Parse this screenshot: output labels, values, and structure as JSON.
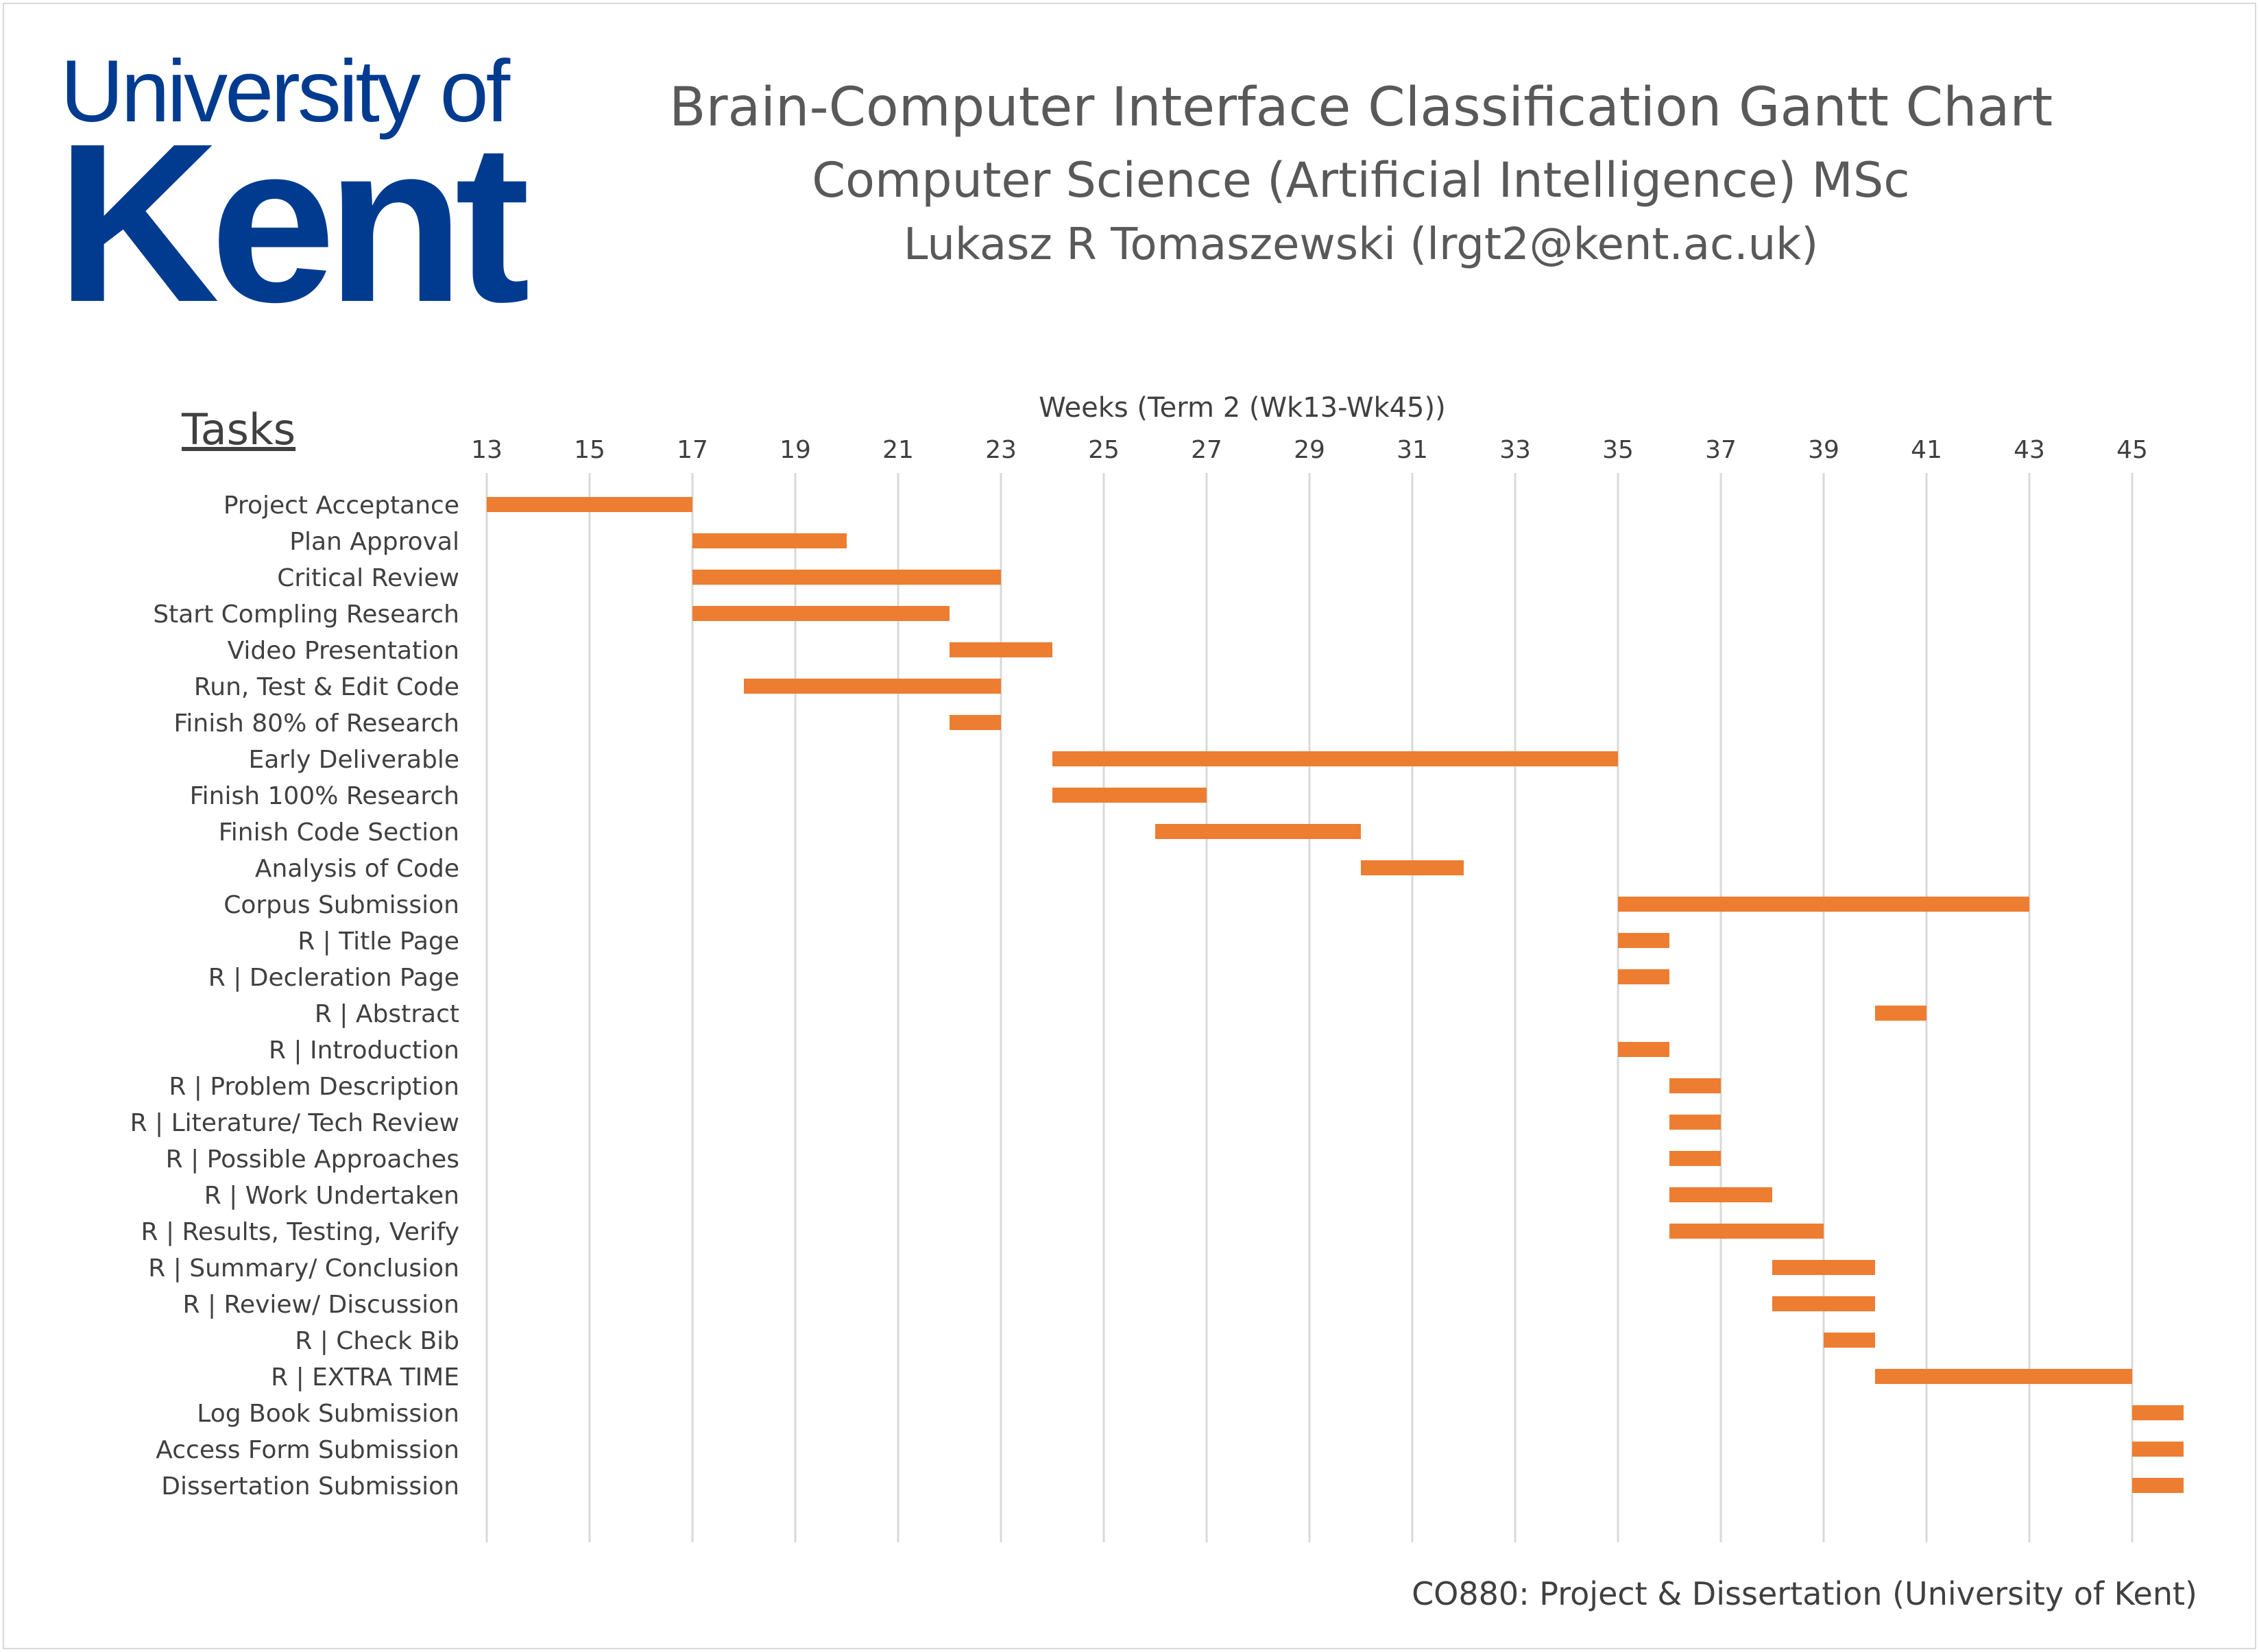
{
  "logo": {
    "line1": "University of",
    "line2": "Kent"
  },
  "header": {
    "title": "Brain-Computer Interface Classification Gantt Chart",
    "subtitle": "Computer Science (Artificial Intelligence) MSc",
    "author": "Lukasz R Tomaszewski (lrgt2@kent.ac.uk)"
  },
  "tasks_heading": "Tasks",
  "footer": "CO880: Project & Dissertation (University of Kent)",
  "colors": {
    "bar": "#ed7d31",
    "gridline": "#d9d9d9",
    "text": "#404040",
    "logo": "#003b8f"
  },
  "chart_data": {
    "type": "gantt",
    "xlabel": "Weeks (Term 2 (Wk13-Wk45))",
    "xlim": [
      13,
      46
    ],
    "xticks": [
      13,
      15,
      17,
      19,
      21,
      23,
      25,
      27,
      29,
      31,
      33,
      35,
      37,
      39,
      41,
      43,
      45
    ],
    "grid": true,
    "tasks": [
      {
        "name": "Project Acceptance",
        "start": 13,
        "end": 17
      },
      {
        "name": "Plan Approval",
        "start": 17,
        "end": 20
      },
      {
        "name": "Critical Review",
        "start": 17,
        "end": 23
      },
      {
        "name": "Start Compling Research",
        "start": 17,
        "end": 22
      },
      {
        "name": "Video Presentation",
        "start": 22,
        "end": 24
      },
      {
        "name": "Run, Test & Edit Code",
        "start": 18,
        "end": 23
      },
      {
        "name": "Finish 80% of Research",
        "start": 22,
        "end": 23
      },
      {
        "name": "Early Deliverable",
        "start": 24,
        "end": 35
      },
      {
        "name": "Finish 100% Research",
        "start": 24,
        "end": 27
      },
      {
        "name": "Finish Code Section",
        "start": 26,
        "end": 30
      },
      {
        "name": "Analysis of Code",
        "start": 30,
        "end": 32
      },
      {
        "name": "Corpus Submission",
        "start": 35,
        "end": 43
      },
      {
        "name": "R | Title Page",
        "start": 35,
        "end": 36
      },
      {
        "name": "R | Decleration Page",
        "start": 35,
        "end": 36
      },
      {
        "name": "R | Abstract",
        "start": 40,
        "end": 41
      },
      {
        "name": "R | Introduction",
        "start": 35,
        "end": 36
      },
      {
        "name": "R | Problem Description",
        "start": 36,
        "end": 37
      },
      {
        "name": "R | Literature/ Tech Review",
        "start": 36,
        "end": 37
      },
      {
        "name": "R | Possible Approaches",
        "start": 36,
        "end": 37
      },
      {
        "name": "R | Work Undertaken",
        "start": 36,
        "end": 38
      },
      {
        "name": "R | Results, Testing, Verify",
        "start": 36,
        "end": 39
      },
      {
        "name": "R | Summary/ Conclusion",
        "start": 38,
        "end": 40
      },
      {
        "name": "R | Review/ Discussion",
        "start": 38,
        "end": 40
      },
      {
        "name": "R | Check Bib",
        "start": 39,
        "end": 40
      },
      {
        "name": "R | EXTRA TIME",
        "start": 40,
        "end": 45
      },
      {
        "name": "Log Book Submission",
        "start": 45,
        "end": 46
      },
      {
        "name": "Access Form Submission",
        "start": 45,
        "end": 46
      },
      {
        "name": "Dissertation Submission",
        "start": 45,
        "end": 46
      }
    ]
  }
}
